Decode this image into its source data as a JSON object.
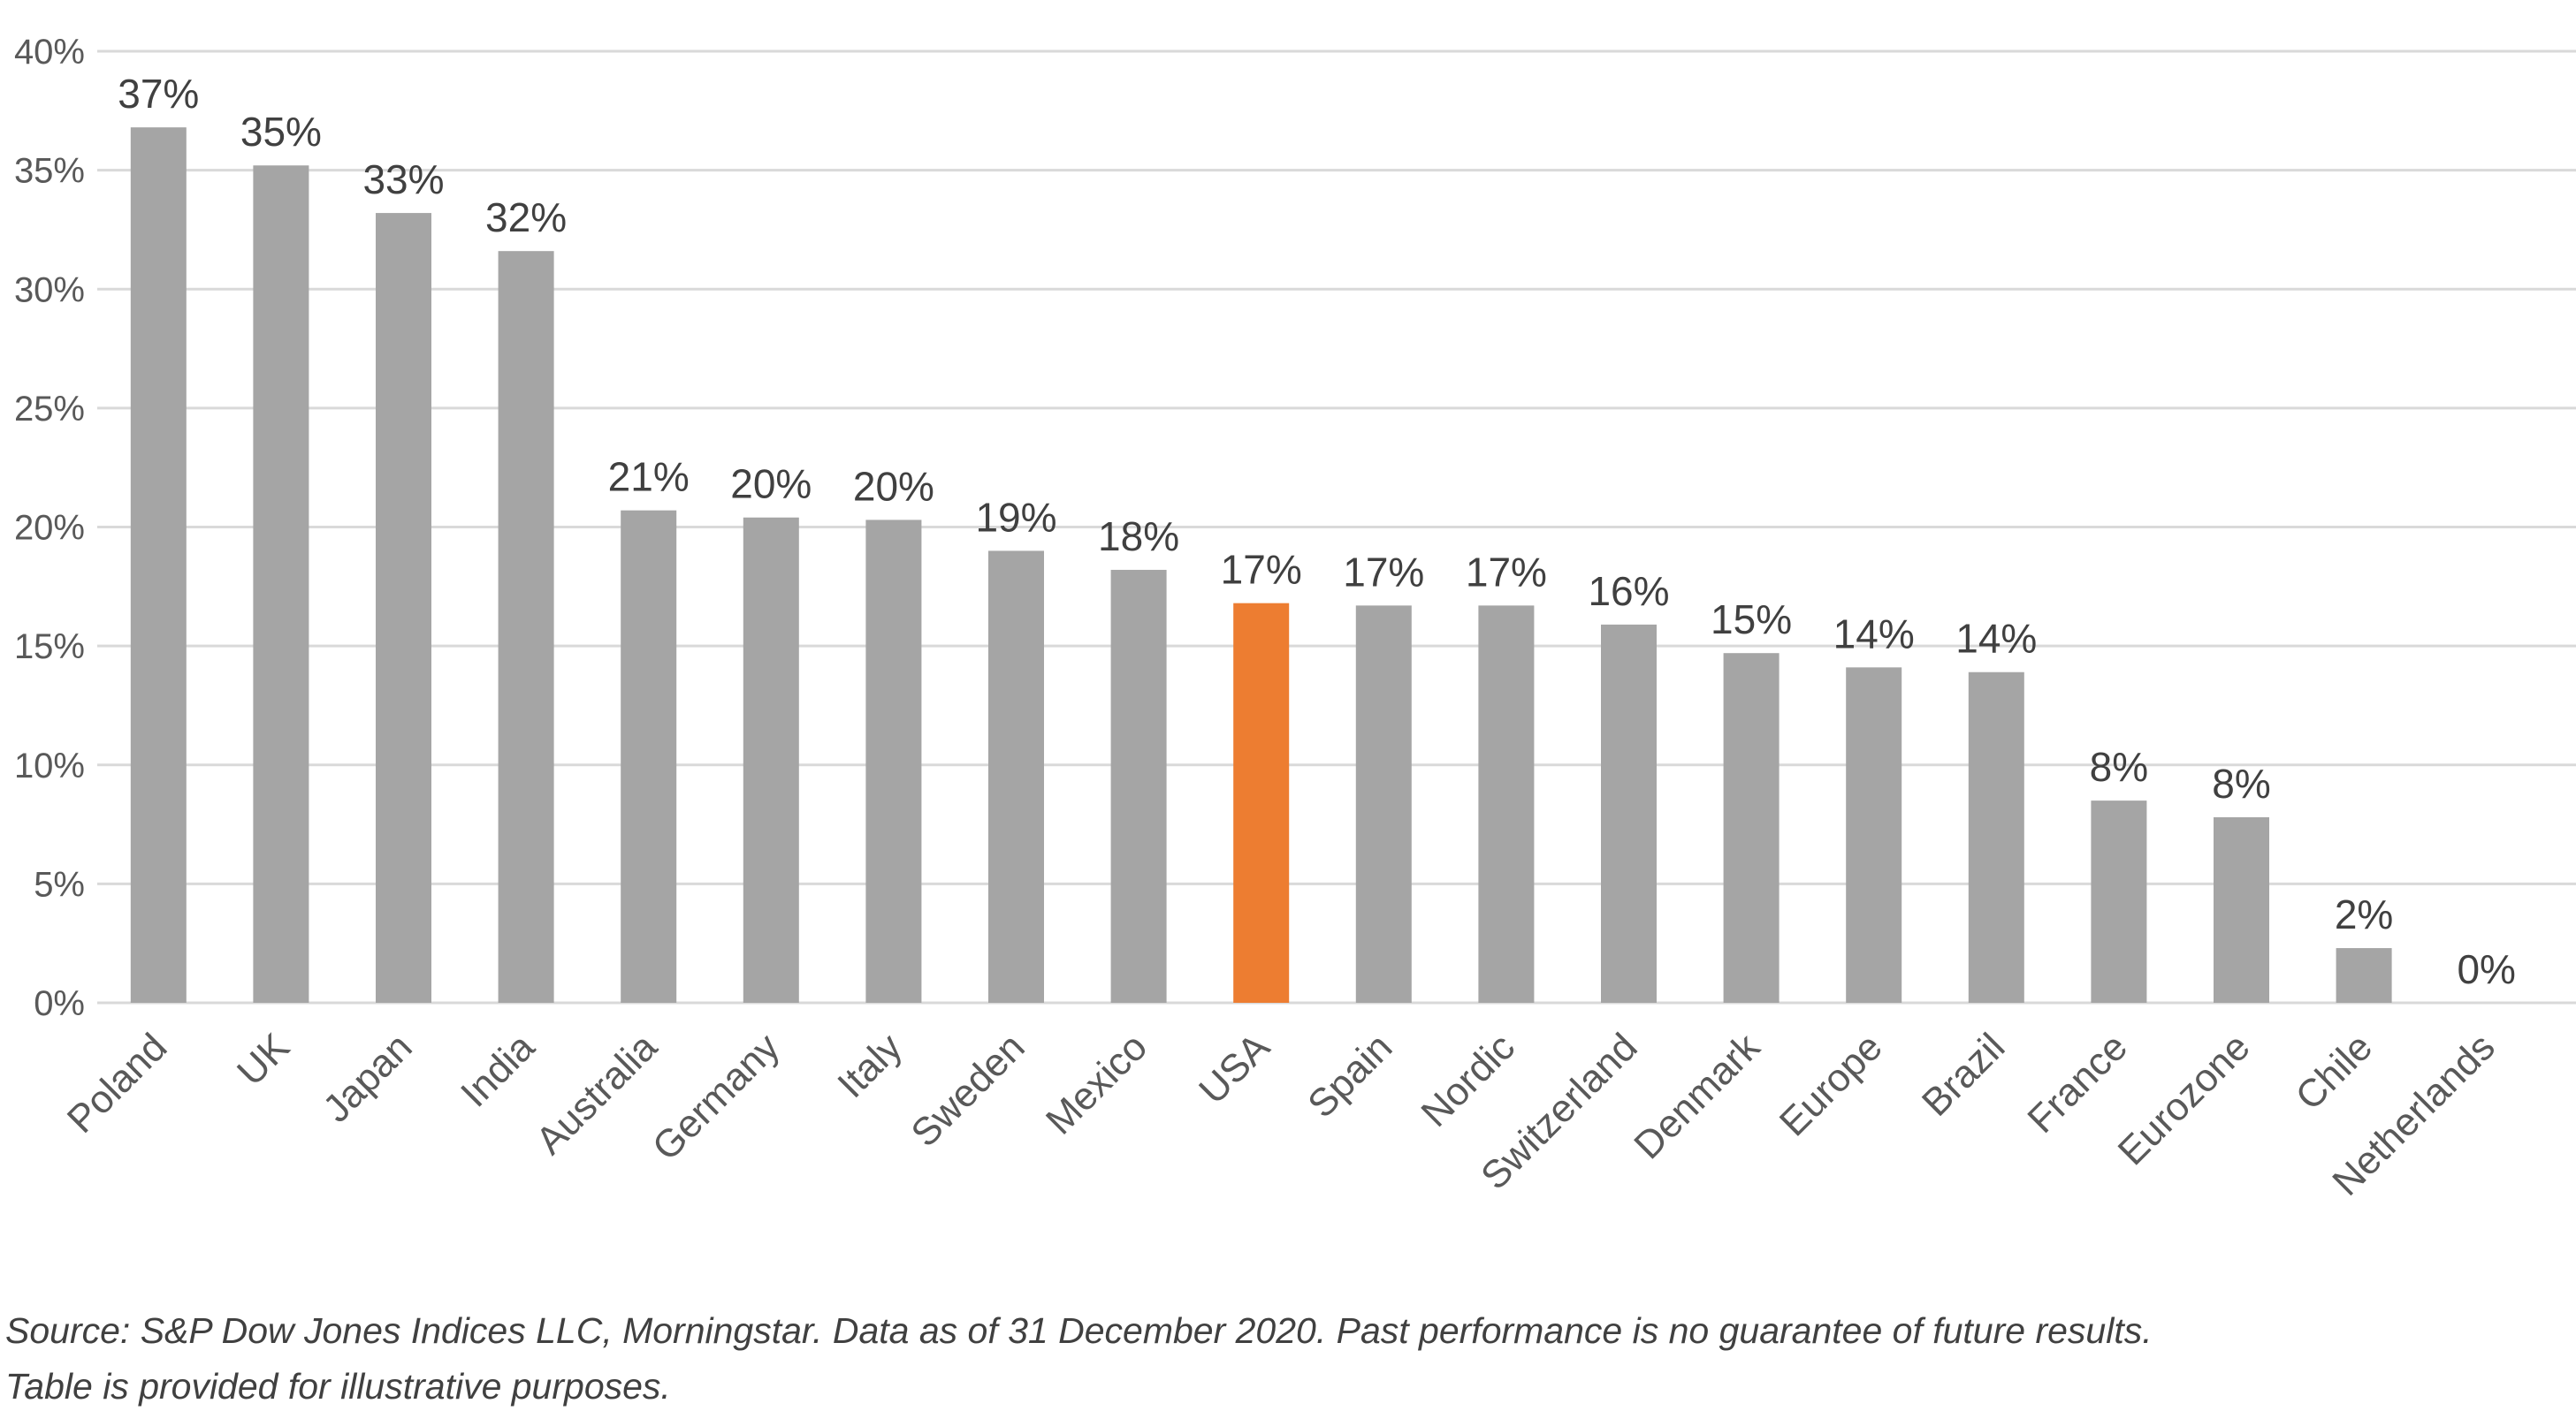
{
  "chart_data": {
    "type": "bar",
    "categories": [
      "Poland",
      "UK",
      "Japan",
      "India",
      "Australia",
      "Germany",
      "Italy",
      "Sweden",
      "Mexico",
      "USA",
      "Spain",
      "Nordic",
      "Switzerland",
      "Denmark",
      "Europe",
      "Brazil",
      "France",
      "Eurozone",
      "Chile",
      "Netherlands"
    ],
    "values": [
      36.8,
      35.2,
      33.2,
      31.6,
      20.7,
      20.4,
      20.3,
      19.0,
      18.2,
      16.8,
      16.7,
      16.7,
      15.9,
      14.7,
      14.1,
      13.9,
      8.5,
      7.8,
      2.3,
      0.0
    ],
    "data_labels": [
      "37%",
      "35%",
      "33%",
      "32%",
      "21%",
      "20%",
      "20%",
      "19%",
      "18%",
      "17%",
      "17%",
      "17%",
      "16%",
      "15%",
      "14%",
      "14%",
      "8%",
      "8%",
      "2%",
      "0%"
    ],
    "ylim": [
      0,
      40
    ],
    "yticks": [
      0,
      5,
      10,
      15,
      20,
      25,
      30,
      35,
      40
    ],
    "ytick_labels": [
      "0%",
      "5%",
      "10%",
      "15%",
      "20%",
      "25%",
      "30%",
      "35%",
      "40%"
    ],
    "grid": true,
    "legend": "none",
    "colors": {
      "bar": "#A5A5A5",
      "highlight": "#ED7D31",
      "gridline": "#D9D9D9"
    },
    "highlight_category": "USA",
    "title": "",
    "xlabel": "",
    "ylabel": ""
  },
  "footnote": {
    "line1": "Source: S&P Dow Jones Indices LLC, Morningstar. Data as of 31 December 2020. Past performance is no guarantee of future results.",
    "line2": "Table is provided for illustrative purposes."
  }
}
